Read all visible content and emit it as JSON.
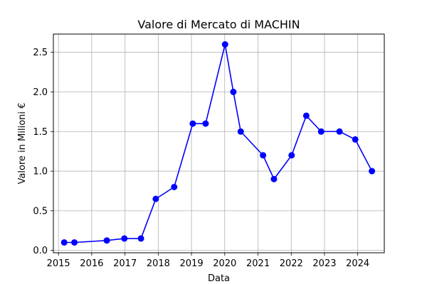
{
  "chart_data": {
    "type": "line",
    "title": "Valore di Mercato di MACHIN",
    "xlabel": "Data",
    "ylabel": "Valore in Milioni €",
    "xlim": [
      "2014-11-06",
      "2024-10-19"
    ],
    "ylim": [
      -0.03,
      2.73
    ],
    "x_ticks": [
      "2015",
      "2016",
      "2017",
      "2018",
      "2019",
      "2020",
      "2021",
      "2022",
      "2023",
      "2024"
    ],
    "y_ticks": [
      "0.0",
      "0.5",
      "1.0",
      "1.5",
      "2.0",
      "2.5"
    ],
    "grid": true,
    "legend": null,
    "series": [
      {
        "color": "#0000ff",
        "marker": "circle",
        "x": [
          "2015-03-05",
          "2015-06-25",
          "2016-06-15",
          "2016-12-25",
          "2017-06-25",
          "2017-12-05",
          "2018-06-25",
          "2019-01-15",
          "2019-06-05",
          "2020-01-05",
          "2020-04-05",
          "2020-06-25",
          "2021-02-25",
          "2021-06-25",
          "2022-01-05",
          "2022-06-15",
          "2022-11-25",
          "2023-06-15",
          "2023-12-05",
          "2024-06-05"
        ],
        "y": [
          0.1,
          0.1,
          0.125,
          0.15,
          0.15,
          0.65,
          0.8,
          1.6,
          1.6,
          2.6,
          2.0,
          1.5,
          1.2,
          0.9,
          1.2,
          1.7,
          1.5,
          1.5,
          1.4,
          1.0
        ]
      }
    ]
  }
}
